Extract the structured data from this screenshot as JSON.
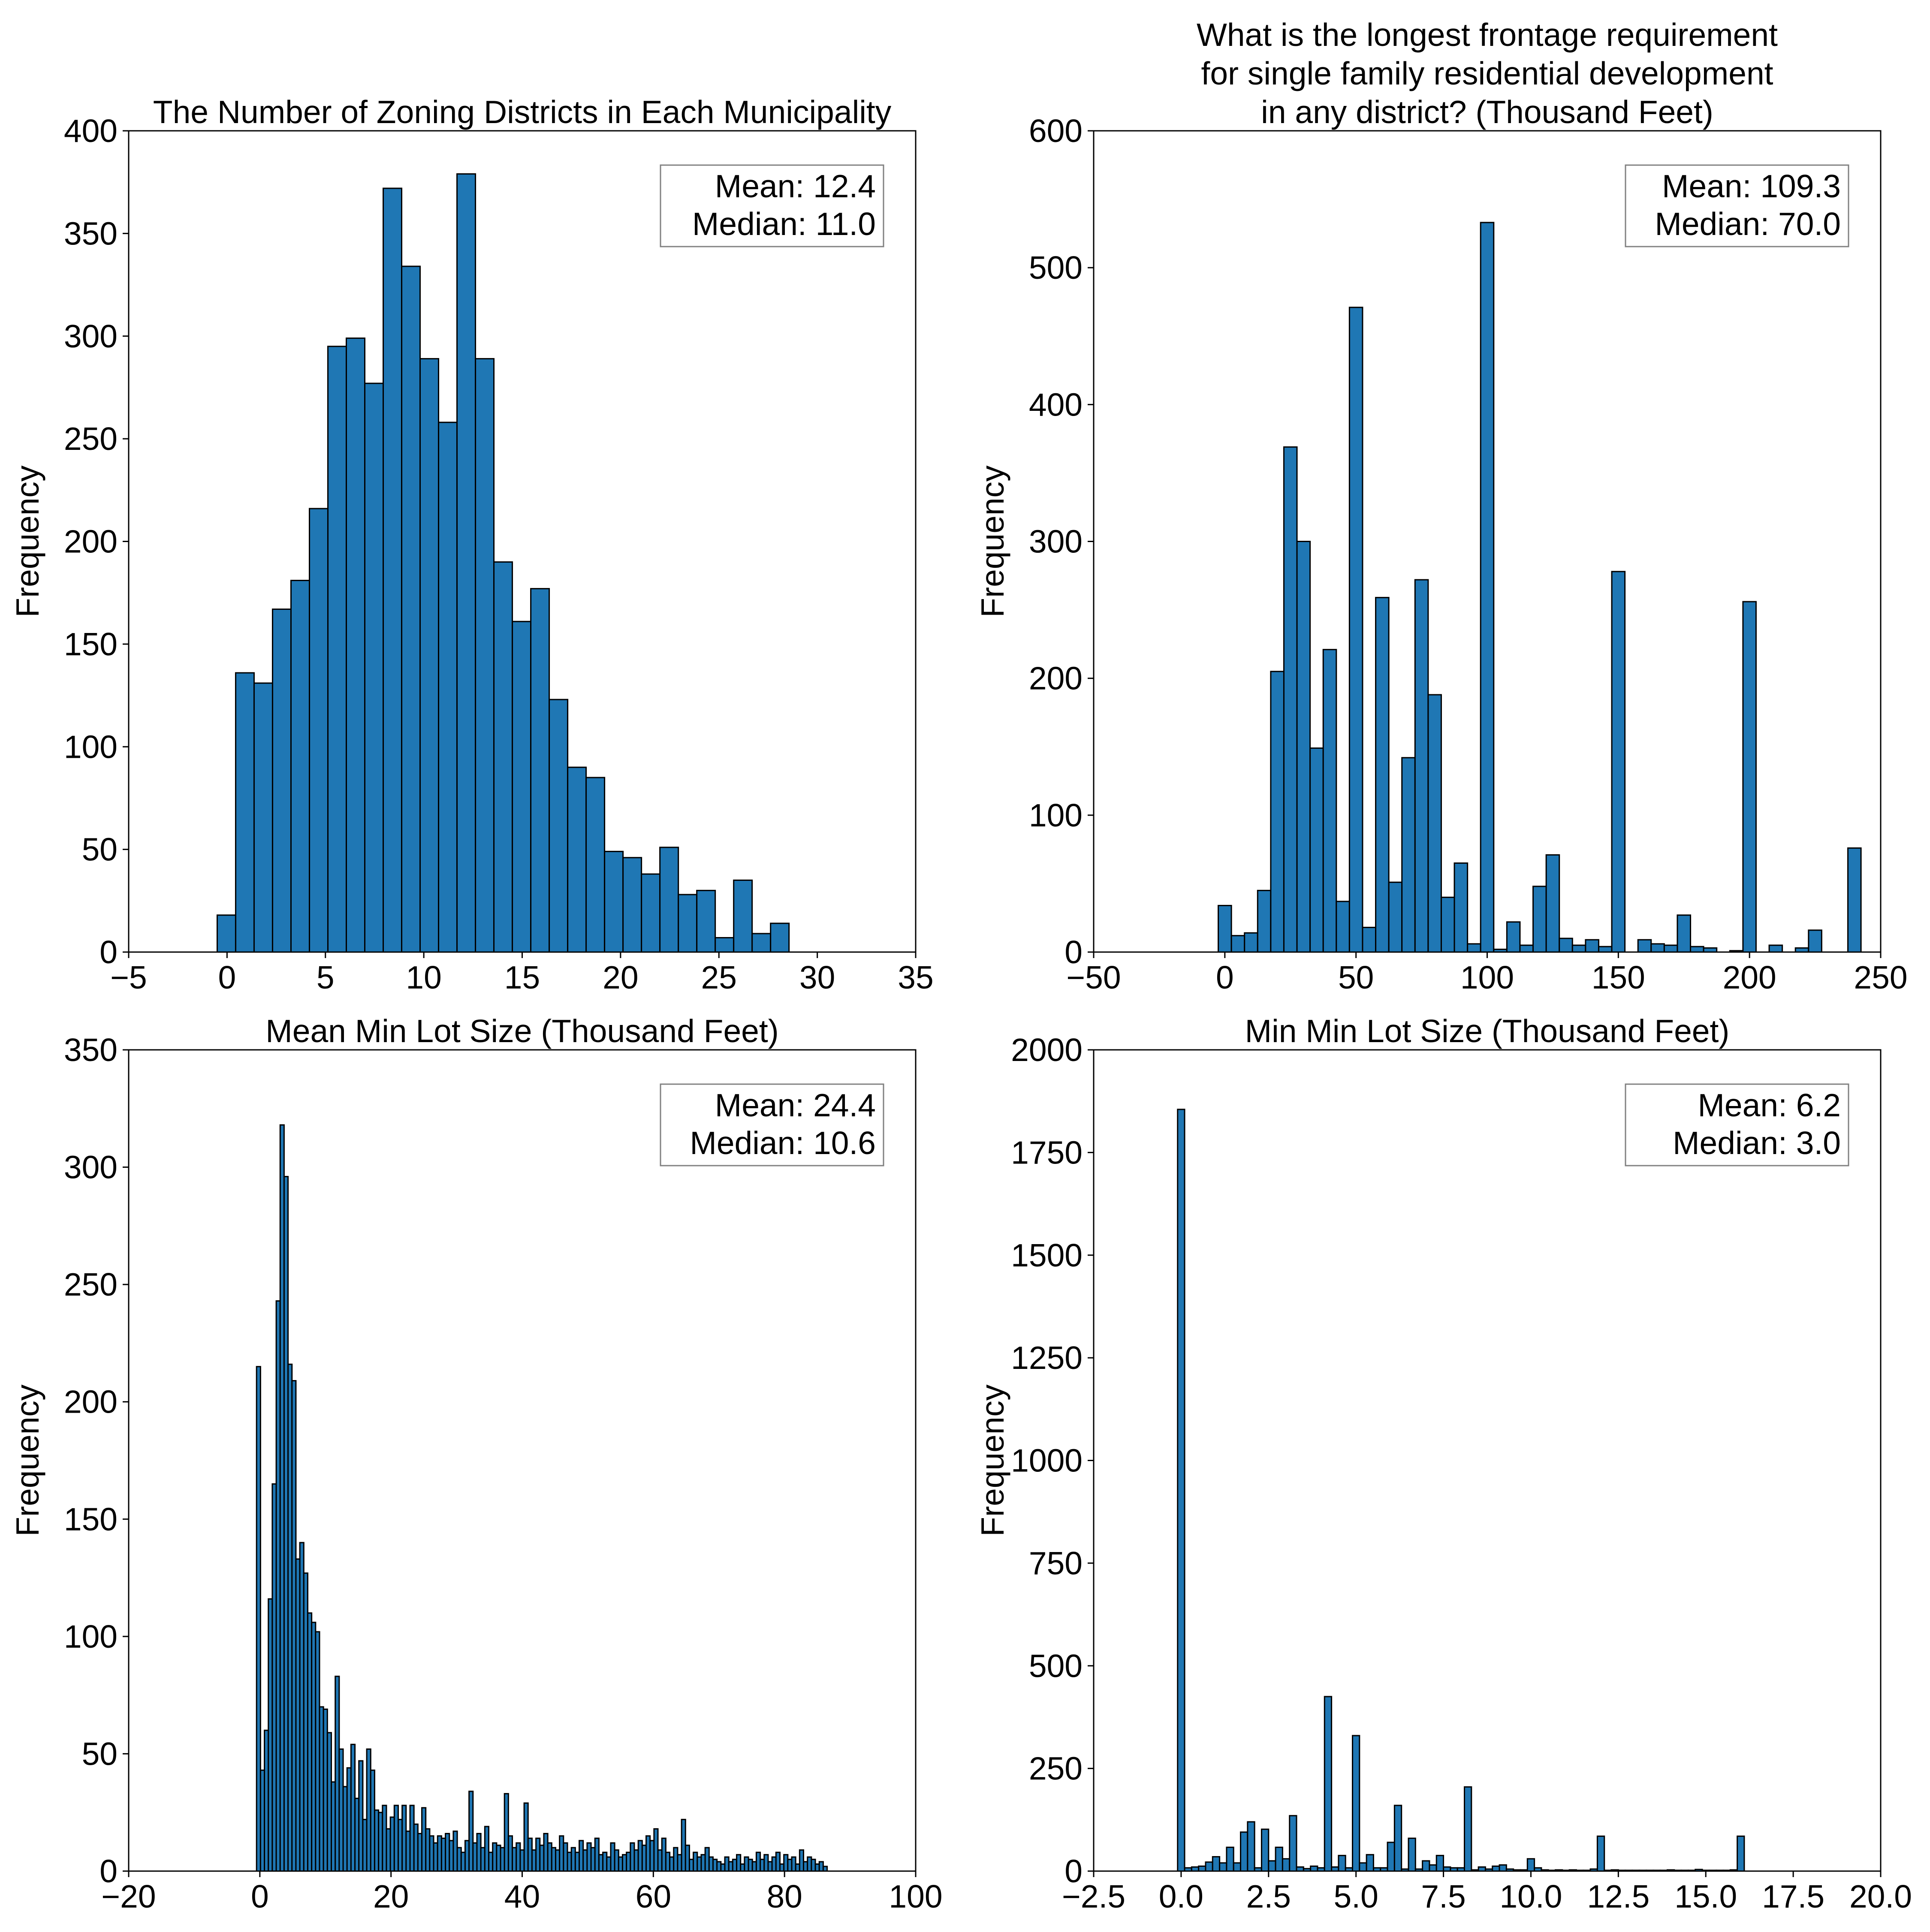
{
  "chart_data": [
    {
      "type": "bar",
      "title": [
        "The Number of Zoning Districts in Each Municipality"
      ],
      "xlabel": "",
      "ylabel": "Frequency",
      "xlim": [
        -5,
        35
      ],
      "ylim": [
        0,
        400
      ],
      "xticks": [
        -5,
        0,
        5,
        10,
        15,
        20,
        25,
        30,
        35
      ],
      "xtick_labels": [
        "−5",
        "0",
        "5",
        "10",
        "15",
        "20",
        "25",
        "30",
        "35"
      ],
      "yticks": [
        0,
        50,
        100,
        150,
        200,
        250,
        300,
        350,
        400
      ],
      "ytick_labels": [
        "0",
        "50",
        "100",
        "150",
        "200",
        "250",
        "300",
        "350",
        "400"
      ],
      "grid": false,
      "legend": "none",
      "bar_color": "#1f77b4",
      "edge_color": "#000000",
      "bin_start": -0.5,
      "bin_width": 0.9375,
      "values": [
        18,
        136,
        131,
        167,
        181,
        216,
        295,
        299,
        277,
        372,
        334,
        289,
        258,
        379,
        289,
        190,
        161,
        177,
        123,
        90,
        85,
        49,
        46,
        38,
        51,
        28,
        30,
        7,
        35,
        9,
        14
      ],
      "stats": [
        "Mean: 12.4",
        "Median: 11.0"
      ]
    },
    {
      "type": "bar",
      "title": [
        "What is the longest frontage requirement",
        "for single family residential development",
        "in any district? (Thousand Feet)"
      ],
      "xlabel": "",
      "ylabel": "Frequency",
      "xlim": [
        -50,
        250
      ],
      "ylim": [
        0,
        600
      ],
      "xticks": [
        -50,
        0,
        50,
        100,
        150,
        200,
        250
      ],
      "xtick_labels": [
        "−50",
        "0",
        "50",
        "100",
        "150",
        "200",
        "250"
      ],
      "yticks": [
        0,
        100,
        200,
        300,
        400,
        500,
        600
      ],
      "ytick_labels": [
        "0",
        "100",
        "200",
        "300",
        "400",
        "500",
        "600"
      ],
      "grid": false,
      "legend": "none",
      "bar_color": "#1f77b4",
      "edge_color": "#000000",
      "bin_start": -2.5,
      "bin_width": 5,
      "values": [
        34,
        12,
        14,
        45,
        205,
        369,
        300,
        149,
        221,
        37,
        471,
        18,
        259,
        51,
        142,
        272,
        188,
        40,
        65,
        6,
        533,
        2,
        22,
        5,
        48,
        71,
        10,
        5,
        9,
        4,
        278,
        0,
        9,
        6,
        5,
        27,
        4,
        3,
        0,
        1,
        256,
        0,
        5,
        0,
        3,
        16,
        0,
        0,
        76
      ],
      "stats": [
        "Mean: 109.3",
        "Median: 70.0"
      ]
    },
    {
      "type": "bar",
      "title": [
        "Mean Min Lot Size (Thousand Feet)"
      ],
      "xlabel": "",
      "ylabel": "Frequency",
      "xlim": [
        -20,
        100
      ],
      "ylim": [
        0,
        350
      ],
      "xticks": [
        -20,
        0,
        20,
        40,
        60,
        80,
        100
      ],
      "xtick_labels": [
        "−20",
        "0",
        "20",
        "40",
        "60",
        "80",
        "100"
      ],
      "yticks": [
        0,
        50,
        100,
        150,
        200,
        250,
        300,
        350
      ],
      "ytick_labels": [
        "0",
        "50",
        "100",
        "150",
        "200",
        "250",
        "300",
        "350"
      ],
      "grid": false,
      "legend": "none",
      "bar_color": "#1f77b4",
      "edge_color": "#000000",
      "bin_start": -0.5,
      "bin_width": 0.6,
      "values": [
        215,
        43,
        60,
        116,
        165,
        243,
        318,
        296,
        216,
        209,
        133,
        140,
        127,
        110,
        106,
        102,
        70,
        69,
        59,
        38,
        83,
        52,
        36,
        44,
        54,
        31,
        47,
        22,
        52,
        43,
        26,
        25,
        28,
        18,
        23,
        28,
        22,
        28,
        17,
        28,
        20,
        16,
        27,
        18,
        15,
        12,
        15,
        14,
        16,
        13,
        17,
        10,
        8,
        13,
        34,
        12,
        16,
        10,
        19,
        8,
        12,
        11,
        10,
        33,
        15,
        10,
        12,
        9,
        29,
        14,
        9,
        14,
        11,
        16,
        12,
        10,
        9,
        15,
        12,
        8,
        10,
        8,
        13,
        9,
        12,
        10,
        14,
        7,
        8,
        6,
        12,
        9,
        6,
        7,
        8,
        12,
        9,
        13,
        11,
        15,
        13,
        18,
        9,
        14,
        8,
        6,
        10,
        7,
        22,
        11,
        5,
        8,
        6,
        7,
        10,
        6,
        5,
        4,
        3,
        6,
        4,
        5,
        7,
        3,
        6,
        5,
        4,
        8,
        5,
        7,
        4,
        6,
        8,
        3,
        7,
        5,
        6,
        3,
        9,
        4,
        6,
        5,
        3,
        4,
        2
      ],
      "stats": [
        "Mean: 24.4",
        "Median: 10.6"
      ]
    },
    {
      "type": "bar",
      "title": [
        "Min Min Lot Size (Thousand Feet)"
      ],
      "xlabel": "",
      "ylabel": "Frequency",
      "xlim": [
        -2.5,
        20
      ],
      "ylim": [
        0,
        2000
      ],
      "xticks": [
        -2.5,
        0,
        2.5,
        5,
        7.5,
        10,
        12.5,
        15,
        17.5,
        20
      ],
      "xtick_labels": [
        "−2.5",
        "0.0",
        "2.5",
        "5.0",
        "7.5",
        "10.0",
        "12.5",
        "15.0",
        "17.5",
        "20.0"
      ],
      "yticks": [
        0,
        250,
        500,
        750,
        1000,
        1250,
        1500,
        1750,
        2000
      ],
      "ytick_labels": [
        "0",
        "250",
        "500",
        "750",
        "1000",
        "1250",
        "1500",
        "1750",
        "2000"
      ],
      "grid": false,
      "legend": "none",
      "bar_color": "#1f77b4",
      "edge_color": "#000000",
      "bin_start": -0.1,
      "bin_width": 0.2,
      "values": [
        1855,
        8,
        10,
        12,
        22,
        35,
        20,
        58,
        20,
        95,
        120,
        8,
        102,
        25,
        58,
        30,
        135,
        10,
        6,
        12,
        8,
        425,
        10,
        38,
        8,
        330,
        20,
        40,
        8,
        8,
        70,
        160,
        5,
        80,
        5,
        25,
        15,
        38,
        10,
        8,
        8,
        205,
        3,
        10,
        5,
        12,
        15,
        5,
        3,
        3,
        30,
        8,
        3,
        2,
        3,
        2,
        3,
        2,
        2,
        5,
        85,
        2,
        3,
        2,
        2,
        2,
        2,
        2,
        2,
        2,
        3,
        2,
        2,
        2,
        4,
        2,
        2,
        2,
        2,
        3,
        85
      ],
      "stats": [
        "Mean: 6.2",
        "Median: 3.0"
      ]
    }
  ]
}
